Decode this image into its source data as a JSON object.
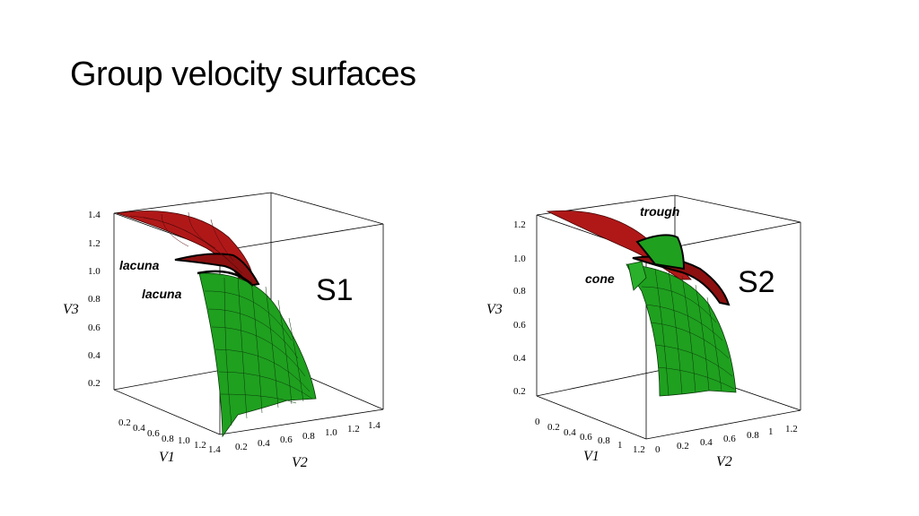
{
  "title": "Group velocity surfaces",
  "figures": [
    {
      "label": "S1",
      "annotations": [
        "lacuna",
        "lacuna"
      ],
      "v3_ticks": [
        "1.4",
        "1.2",
        "1.0",
        "0.8",
        "0.6",
        "0.4",
        "0.2"
      ],
      "v1_ticks": [
        "0.2",
        "0.4",
        "0.6",
        "0.8",
        "1.0",
        "1.2",
        "1.4"
      ],
      "v2_ticks": [
        "0.2",
        "0.4",
        "0.6",
        "0.8",
        "1.0",
        "1.2",
        "1.4"
      ],
      "axis_labels": {
        "v1": "V1",
        "v2": "V2",
        "v3": "V3"
      }
    },
    {
      "label": "S2",
      "annotations": [
        "trough",
        "cone"
      ],
      "v3_ticks": [
        "1.2",
        "1.0",
        "0.8",
        "0.6",
        "0.4",
        "0.2"
      ],
      "v1_ticks": [
        "0",
        "0.2",
        "0.4",
        "0.6",
        "0.8",
        "1",
        "1.2"
      ],
      "v2_ticks": [
        "0",
        "0.2",
        "0.4",
        "0.6",
        "0.8",
        "1",
        "1.2"
      ],
      "axis_labels": {
        "v1": "V1",
        "v2": "V2",
        "v3": "V3"
      }
    }
  ],
  "colors": {
    "outer_surface": "#b01818",
    "inner_surface": "#1fa01f",
    "mesh": "#0a3a0a"
  }
}
